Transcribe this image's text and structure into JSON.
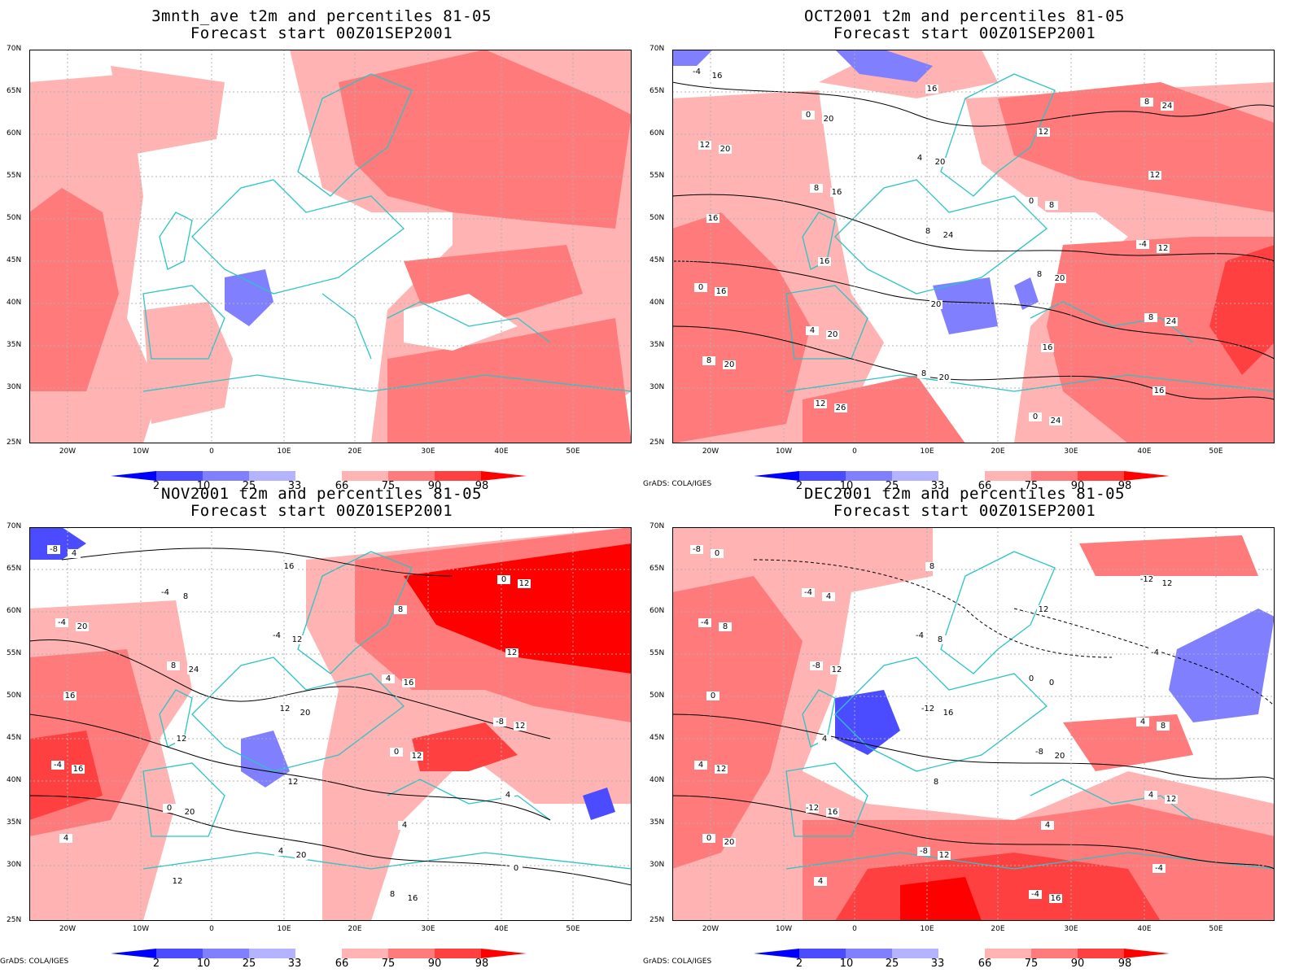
{
  "panels": [
    {
      "title": "3mnth_ave t2m and percentiles 81-05",
      "subtitle": "Forecast start 00Z01SEP2001",
      "credit": "",
      "contour_labels": []
    },
    {
      "title": "OCT2001 t2m and percentiles 81-05",
      "subtitle": "Forecast start 00Z01SEP2001",
      "credit": "GrADS: COLA/IGES",
      "contour_labels": [
        "-4",
        "0",
        "4",
        "0",
        "-4",
        "0",
        "4",
        "8",
        "0",
        "8",
        "12",
        "8",
        "8",
        "8",
        "8",
        "8",
        "12",
        "16",
        "12",
        "12",
        "16",
        "16",
        "20",
        "16",
        "16",
        "16",
        "20",
        "20",
        "8",
        "12",
        "16",
        "20",
        "20",
        "24",
        "24",
        "20",
        "16",
        "24",
        "20",
        "24",
        "20",
        "26"
      ]
    },
    {
      "title": "NOV2001 t2m and percentiles 81-05",
      "subtitle": "Forecast start 00Z01SEP2001",
      "credit": "GrADS: COLA/IGES",
      "contour_labels": [
        "-8",
        "-4",
        "-4",
        "4",
        "-8",
        "-4",
        "0",
        "4",
        "8",
        "0",
        "-4",
        "8",
        "12",
        "0",
        "4",
        "4",
        "12",
        "16",
        "8",
        "12",
        "16",
        "12",
        "12",
        "4",
        "0",
        "4",
        "8",
        "12",
        "16",
        "12",
        "16",
        "20",
        "20",
        "16",
        "12",
        "20",
        "24",
        "20",
        "12"
      ]
    },
    {
      "title": "DEC2001 t2m and percentiles 81-05",
      "subtitle": "Forecast start 00Z01SEP2001",
      "credit": "GrADS: COLA/IGES",
      "contour_labels": [
        "-8",
        "-4",
        "-4",
        "0",
        "4",
        "4",
        "-12",
        "-8",
        "-4",
        "-12",
        "-4",
        "-8",
        "-12",
        "-8",
        "4",
        "0",
        "4",
        "8",
        "12",
        "-4",
        "0",
        "4",
        "8",
        "4",
        "-4",
        "0",
        "4",
        "8",
        "0",
        "8",
        "12",
        "16",
        "12",
        "16",
        "12",
        "8",
        "12",
        "16",
        "20",
        "12",
        "20"
      ]
    }
  ],
  "axes": {
    "lat_ticks": [
      "70N",
      "65N",
      "60N",
      "55N",
      "50N",
      "45N",
      "40N",
      "35N",
      "30N",
      "25N"
    ],
    "lon_ticks": [
      "20W",
      "10W",
      "0",
      "10E",
      "20E",
      "30E",
      "40E",
      "50E"
    ]
  },
  "colorbar": {
    "labels": [
      "2",
      "10",
      "25",
      "33",
      "66",
      "75",
      "90",
      "98"
    ],
    "colors": [
      "#0000ff",
      "#4b4bff",
      "#8080ff",
      "#b3b3ff",
      "#ffffff",
      "#ffb3b3",
      "#ff7a7a",
      "#ff4040",
      "#ff0000"
    ]
  },
  "map_colors": {
    "coast": "#2cc4c4",
    "contour": "#000000",
    "grid": "#b0b0b0"
  }
}
